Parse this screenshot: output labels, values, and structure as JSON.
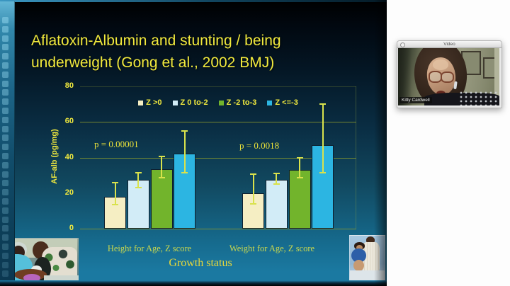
{
  "slide": {
    "title_line1": "Aflatoxin-Albumin and stunting / being",
    "title_line2": "underweight (Gong et al., 2002 BMJ)",
    "colors": {
      "title_text": "#f1e93d",
      "axis_text": "#f0e93e",
      "gridline": "#87972f",
      "error_bar": "#d9e24c",
      "background_top": "#000000",
      "background_bottom": "#1b79a1"
    }
  },
  "chart_data": {
    "type": "bar",
    "title": "",
    "ylabel": "AF-alb (pg/mg)",
    "xlabel": "Growth status",
    "ylim": [
      0,
      80
    ],
    "yticks": [
      80,
      60,
      40,
      20,
      0
    ],
    "gridlines": [
      80,
      60,
      40,
      0
    ],
    "grid": "horizontal",
    "legend_position": "top-center",
    "categories": [
      "Height for Age, Z score",
      "Weight for Age, Z score"
    ],
    "series": [
      {
        "name": "Z >0",
        "color": "#f5eec3",
        "values": [
          18,
          20
        ],
        "err_low": [
          13.5,
          14
        ],
        "err_high": [
          26,
          30.5
        ]
      },
      {
        "name": "Z 0 to-2",
        "color": "#d2ecf7",
        "values": [
          27.5,
          27.5
        ],
        "err_low": [
          23,
          25
        ],
        "err_high": [
          31.5,
          31
        ]
      },
      {
        "name": "Z -2 to-3",
        "color": "#72b42c",
        "values": [
          33.5,
          33
        ],
        "err_low": [
          28.5,
          28.5
        ],
        "err_high": [
          40.5,
          40
        ]
      },
      {
        "name": "Z <=-3",
        "color": "#2cb5e2",
        "values": [
          42,
          47
        ],
        "err_low": [
          31.5,
          31.5
        ],
        "err_high": [
          55,
          70
        ]
      }
    ],
    "annotations": [
      {
        "text": "p = 0.00001",
        "category": "Height for Age, Z score"
      },
      {
        "text": "p = 0.0018",
        "category": "Weight for Age, Z score"
      }
    ]
  },
  "video_window": {
    "title": "Video",
    "name_tag": "Kitty Cardwell"
  }
}
